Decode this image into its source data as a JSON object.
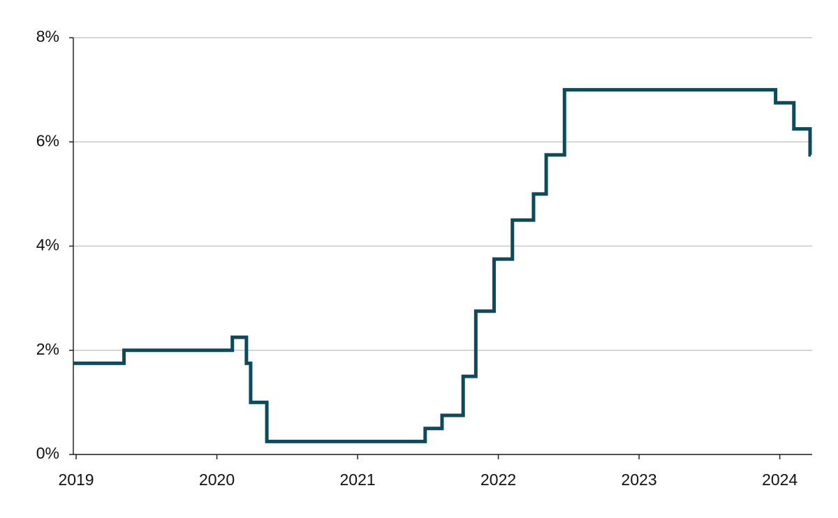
{
  "chart_data": {
    "type": "line",
    "x": [
      2018.98,
      2019.34,
      2019.34,
      2020.11,
      2020.11,
      2020.21,
      2020.21,
      2020.24,
      2020.24,
      2020.355,
      2020.355,
      2021.48,
      2021.48,
      2021.6,
      2021.6,
      2021.75,
      2021.75,
      2021.84,
      2021.84,
      2021.97,
      2021.97,
      2022.1,
      2022.1,
      2022.25,
      2022.25,
      2022.34,
      2022.34,
      2022.47,
      2022.47,
      2023.97,
      2023.97,
      2024.1,
      2024.1,
      2024.215,
      2024.215,
      2024.22
    ],
    "values": [
      1.75,
      1.75,
      2,
      2,
      2.25,
      2.25,
      1.75,
      1.75,
      1,
      1,
      0.25,
      0.25,
      0.5,
      0.5,
      0.75,
      0.75,
      1.5,
      1.5,
      2.75,
      2.75,
      3.75,
      3.75,
      4.5,
      4.5,
      5,
      5,
      5.75,
      5.75,
      7,
      7,
      6.75,
      6.75,
      6.25,
      6.25,
      5.75,
      5.75
    ],
    "color": "#0d4a5c",
    "xlim": [
      2018.98,
      2024.23
    ],
    "xticks": [
      2019,
      2020,
      2021,
      2022,
      2023,
      2024
    ],
    "ylim": [
      0,
      8
    ],
    "yticks": [
      {
        "value": 0,
        "label": "0%"
      },
      {
        "value": 2,
        "label": "2%"
      },
      {
        "value": 4,
        "label": "4%"
      },
      {
        "value": 6,
        "label": "6%"
      },
      {
        "value": 8,
        "label": "8%"
      }
    ],
    "grid": true
  }
}
